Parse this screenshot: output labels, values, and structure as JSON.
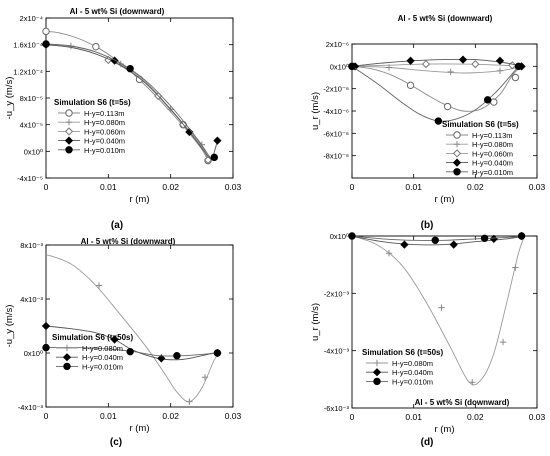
{
  "chart_data": [
    {
      "type": "line",
      "panel": "(a)",
      "title": "Al - 5 wt% Si (downward)",
      "xlabel": "r (m)",
      "ylabel": "-u_y (m/s)",
      "xlim": [
        0,
        0.03
      ],
      "ylim": [
        -4e-05,
        0.0002
      ],
      "xticks": [
        0,
        0.01,
        0.02,
        0.03
      ],
      "xtick_labels": [
        "0",
        "0.01",
        "0.02",
        "0.03"
      ],
      "yticks": [
        -4e-05,
        0,
        4e-05,
        8e-05,
        0.00012,
        0.00016,
        0.0002
      ],
      "ytick_labels": [
        "-4x10⁻⁵",
        "0x10⁰",
        "4x10⁻⁵",
        "8x10⁻⁵",
        "1.2x10⁻⁴",
        "1.6x10⁻⁴",
        "2x10⁻⁴"
      ],
      "legend_title": "Simulation S6 (t=5s)",
      "legend_position": "lower-left",
      "series": [
        {
          "name": "H-y=0.113m",
          "marker": "open-circle",
          "x": [
            0,
            0.002,
            0.005,
            0.008,
            0.011,
            0.014,
            0.017,
            0.02,
            0.023,
            0.025,
            0.026
          ],
          "y": [
            0.00018,
            0.000178,
            0.00017,
            0.000157,
            0.000139,
            0.000116,
            8.9e-05,
            5.9e-05,
            2.7e-05,
            3e-06,
            -1.4e-05
          ],
          "marker_x": [
            0,
            0.008,
            0.015,
            0.022,
            0.026
          ],
          "marker_y": [
            0.00018,
            0.000157,
            0.000108,
            4e-05,
            -1.4e-05
          ]
        },
        {
          "name": "H-y=0.080m",
          "marker": "plus",
          "x": [
            0,
            0.004,
            0.008,
            0.012,
            0.016,
            0.02,
            0.023,
            0.025,
            0.026
          ],
          "y": [
            0.000161,
            0.000158,
            0.000149,
            0.000131,
            0.000104,
            6.3e-05,
            3.1e-05,
            1e-05,
            -1.3e-05
          ],
          "marker_x": [
            0.004,
            0.012,
            0.02,
            0.025
          ],
          "marker_y": [
            0.000158,
            0.000131,
            6.3e-05,
            1e-05
          ]
        },
        {
          "name": "H-y=0.060m",
          "marker": "open-diamond",
          "x": [
            0,
            0.004,
            0.008,
            0.012,
            0.016,
            0.02,
            0.023,
            0.025,
            0.026
          ],
          "y": [
            0.00016,
            0.000156,
            0.000146,
            0.000128,
            0.000102,
            6.2e-05,
            3e-05,
            7e-06,
            -1.3e-05
          ],
          "marker_x": [
            0.01,
            0.018,
            0.022,
            0.026
          ],
          "marker_y": [
            0.000137,
            8.3e-05,
            4e-05,
            -1.3e-05
          ]
        },
        {
          "name": "H-y=0.040m",
          "marker": "filled-diamond",
          "x": [
            0,
            0.004,
            0.008,
            0.012,
            0.016,
            0.02,
            0.023,
            0.025,
            0.0265,
            0.027,
            0.0275
          ],
          "y": [
            0.00016,
            0.000156,
            0.000146,
            0.000129,
            0.000102,
            6.3e-05,
            2.9e-05,
            5e-06,
            -1.2e-05,
            -1e-06,
            1.6e-05
          ],
          "marker_x": [
            0,
            0.011,
            0.023,
            0.0275
          ],
          "marker_y": [
            0.00016,
            0.000136,
            2.9e-05,
            1.6e-05
          ]
        },
        {
          "name": "H-y=0.010m",
          "marker": "filled-circle",
          "x": [
            0,
            0.004,
            0.008,
            0.012,
            0.016,
            0.02,
            0.023,
            0.025,
            0.0265,
            0.027,
            0.0275
          ],
          "y": [
            0.000161,
            0.000158,
            0.000149,
            0.000132,
            0.000106,
            6.8e-05,
            3.4e-05,
            9e-06,
            -1.1e-05,
            -9e-06,
            -9e-06
          ],
          "marker_x": [
            0,
            0.0135,
            0.027
          ],
          "marker_y": [
            0.000161,
            0.000124,
            -9e-06
          ]
        }
      ]
    },
    {
      "type": "line",
      "panel": "(b)",
      "title": "Al - 5 wt% Si (downward)",
      "xlabel": "r (m)",
      "ylabel": "u_r (m/s)",
      "xlim": [
        0,
        0.03
      ],
      "ylim": [
        -1e-05,
        2e-06
      ],
      "xticks": [
        0,
        0.01,
        0.02,
        0.03
      ],
      "xtick_labels": [
        "0",
        "0.01",
        "0.02",
        "0.03"
      ],
      "yticks": [
        -8e-06,
        -6e-06,
        -4e-06,
        -2e-06,
        0,
        2e-06
      ],
      "ytick_labels": [
        "-8x10⁻⁶",
        "-6x10⁻⁶",
        "-4x10⁻⁶",
        "-2x10⁻⁶",
        "0x10⁰",
        "2x10⁻⁶"
      ],
      "legend_title": "Simulation S6 (t=5s)",
      "legend_position": "lower-right",
      "series": [
        {
          "name": "H-y=0.113m",
          "marker": "open-circle",
          "x": [
            0,
            0.003,
            0.006,
            0.009,
            0.012,
            0.015,
            0.018,
            0.021,
            0.024,
            0.026,
            0.0275
          ],
          "y": [
            0,
            -2e-07,
            -7e-07,
            -1.5e-06,
            -2.5e-06,
            -3.4e-06,
            -4e-06,
            -3.8e-06,
            -2.5e-06,
            -8e-07,
            0
          ],
          "marker_x": [
            0,
            0.0095,
            0.0155,
            0.023,
            0.0265
          ],
          "marker_y": [
            0,
            -1.7e-06,
            -3.6e-06,
            -3.2e-06,
            -1e-06
          ]
        },
        {
          "name": "H-y=0.080m",
          "marker": "plus",
          "x": [
            0,
            0.006,
            0.012,
            0.018,
            0.024,
            0.0275
          ],
          "y": [
            0,
            -1e-07,
            -4e-07,
            -6e-07,
            -4e-07,
            0
          ],
          "marker_x": [
            0.006,
            0.016,
            0.024
          ],
          "marker_y": [
            -1e-07,
            -5e-07,
            -4e-07
          ]
        },
        {
          "name": "H-y=0.060m",
          "marker": "open-diamond",
          "x": [
            0,
            0.006,
            0.012,
            0.018,
            0.024,
            0.0275
          ],
          "y": [
            0,
            1e-07,
            2e-07,
            2e-07,
            1e-07,
            0
          ],
          "marker_x": [
            0.012,
            0.02,
            0.026
          ],
          "marker_y": [
            2e-07,
            2e-07,
            1e-07
          ]
        },
        {
          "name": "H-y=0.040m",
          "marker": "filled-diamond",
          "x": [
            0,
            0.005,
            0.01,
            0.015,
            0.02,
            0.025,
            0.0275
          ],
          "y": [
            0,
            3e-07,
            5e-07,
            6e-07,
            6e-07,
            3e-07,
            0
          ],
          "marker_x": [
            0.0005,
            0.0095,
            0.018,
            0.024,
            0.0275
          ],
          "marker_y": [
            0,
            5e-07,
            6e-07,
            5e-07,
            0
          ]
        },
        {
          "name": "H-y=0.010m",
          "marker": "filled-circle",
          "x": [
            0,
            0.004,
            0.008,
            0.011,
            0.014,
            0.017,
            0.02,
            0.023,
            0.025,
            0.027
          ],
          "y": [
            0,
            -1.5e-06,
            -3.2e-06,
            -4.3e-06,
            -4.9e-06,
            -4.7e-06,
            -3.9e-06,
            -2.5e-06,
            -1.3e-06,
            0
          ],
          "marker_x": [
            0,
            0.014,
            0.022,
            0.027
          ],
          "marker_y": [
            0,
            -4.9e-06,
            -3e-06,
            0
          ]
        }
      ]
    },
    {
      "type": "line",
      "panel": "(c)",
      "title": "Al - 5 wt% Si (downward)",
      "xlabel": "r (m)",
      "ylabel": "-u_y (m/s)",
      "xlim": [
        0,
        0.03
      ],
      "ylim": [
        -0.004,
        0.008
      ],
      "xticks": [
        0,
        0.01,
        0.02,
        0.03
      ],
      "xtick_labels": [
        "0",
        "0.01",
        "0.02",
        "0.03"
      ],
      "yticks": [
        -0.004,
        0,
        0.004,
        0.008
      ],
      "ytick_labels": [
        "-4x10⁻³",
        "0x10⁰",
        "4x10⁻³",
        "8x10⁻³"
      ],
      "legend_title": "Simulation S6 (t=50s)",
      "legend_position": "lower-left",
      "series": [
        {
          "name": "H-y=0.080m",
          "marker": "plus",
          "x": [
            0,
            0.004,
            0.008,
            0.012,
            0.016,
            0.019,
            0.021,
            0.023,
            0.025,
            0.027,
            0.028
          ],
          "y": [
            0.0073,
            0.0066,
            0.005,
            0.0028,
            0.0005,
            -0.0015,
            -0.0029,
            -0.0036,
            -0.0026,
            -0.0005,
            0
          ],
          "marker_x": [
            0.0085,
            0.023,
            0.0255
          ],
          "marker_y": [
            0.005,
            -0.0036,
            -0.0018
          ]
        },
        {
          "name": "H-y=0.040m",
          "marker": "filled-diamond",
          "x": [
            0,
            0.004,
            0.008,
            0.011,
            0.014,
            0.018,
            0.021,
            0.023,
            0.025,
            0.027,
            0.028
          ],
          "y": [
            0.002,
            0.0018,
            0.0015,
            0.001,
            0.0002,
            -0.0004,
            -0.0005,
            -0.0004,
            -0.0002,
            0,
            0
          ],
          "marker_x": [
            0,
            0.011,
            0.0185,
            0.0275
          ],
          "marker_y": [
            0.002,
            0.001,
            -0.0004,
            0
          ]
        },
        {
          "name": "H-y=0.010m",
          "marker": "filled-circle",
          "x": [
            0,
            0.005,
            0.01,
            0.014,
            0.018,
            0.022,
            0.025,
            0.028
          ],
          "y": [
            0.0004,
            0.0004,
            0.0003,
            0.0001,
            -0.0002,
            -0.0002,
            -0.0001,
            0
          ],
          "marker_x": [
            0,
            0.0135,
            0.021,
            0.0275
          ],
          "marker_y": [
            0.0004,
            0.0001,
            -0.0002,
            0
          ]
        }
      ]
    },
    {
      "type": "line",
      "panel": "(d)",
      "title": "Al - 5 wt% Si (downward)",
      "xlabel": "r (m)",
      "ylabel": "u_r (m/s)",
      "xlim": [
        0,
        0.03
      ],
      "ylim": [
        -0.006,
        0
      ],
      "xticks": [
        0,
        0.01,
        0.02,
        0.03
      ],
      "xtick_labels": [
        "0",
        "0.01",
        "0.02",
        "0.03"
      ],
      "yticks": [
        -0.006,
        -0.004,
        -0.002,
        0
      ],
      "ytick_labels": [
        "-6x10⁻³",
        "-4x10⁻³",
        "-2x10⁻³",
        "0x10⁰"
      ],
      "legend_title": "Simulation S6 (t=50s)",
      "legend_position": "lower-left",
      "series": [
        {
          "name": "H-y=0.080m",
          "marker": "plus",
          "x": [
            0,
            0.004,
            0.008,
            0.012,
            0.016,
            0.019,
            0.021,
            0.023,
            0.025,
            0.027,
            0.028
          ],
          "y": [
            0,
            -0.0003,
            -0.001,
            -0.0023,
            -0.0039,
            -0.0051,
            -0.005,
            -0.0041,
            -0.0024,
            -0.0006,
            0
          ],
          "marker_x": [
            0.006,
            0.0145,
            0.0195,
            0.0245,
            0.0265
          ],
          "marker_y": [
            -0.0006,
            -0.0025,
            -0.0051,
            -0.0037,
            -0.0011
          ]
        },
        {
          "name": "H-y=0.040m",
          "marker": "filled-diamond",
          "x": [
            0,
            0.005,
            0.01,
            0.015,
            0.02,
            0.025,
            0.028
          ],
          "y": [
            0,
            -0.0002,
            -0.0003,
            -0.0003,
            -0.0002,
            -0.0001,
            0
          ],
          "marker_x": [
            0.0085,
            0.0165,
            0.023,
            0.0275
          ],
          "marker_y": [
            -0.0003,
            -0.0003,
            -0.0001,
            0
          ]
        },
        {
          "name": "H-y=0.010m",
          "marker": "filled-circle",
          "x": [
            0,
            0.005,
            0.01,
            0.015,
            0.02,
            0.025,
            0.028
          ],
          "y": [
            0,
            -0.0001,
            -0.00015,
            -0.00015,
            -0.0001,
            -5e-05,
            0
          ],
          "marker_x": [
            0,
            0.0135,
            0.0215,
            0.0275
          ],
          "marker_y": [
            0,
            -0.00015,
            -8e-05,
            0
          ]
        }
      ]
    }
  ]
}
